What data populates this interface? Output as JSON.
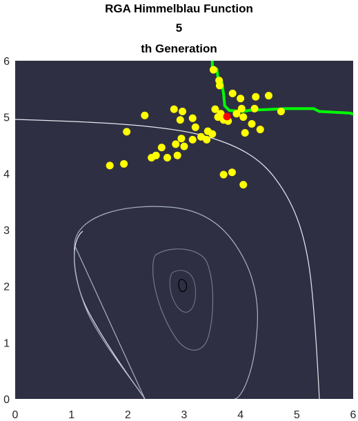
{
  "chart_data": {
    "type": "scatter",
    "title_lines": [
      "RGA Himmelblau Function",
      "5",
      "th Generation"
    ],
    "xlabel": "",
    "ylabel": "",
    "xlim": [
      0,
      6
    ],
    "ylim": [
      0,
      6
    ],
    "x_ticks": [
      "0",
      "1",
      "2",
      "3",
      "4",
      "5",
      "6"
    ],
    "y_ticks": [
      "0",
      "1",
      "2",
      "3",
      "4",
      "5",
      "6"
    ],
    "grid": false,
    "colors": {
      "background": "#2f2f44",
      "population": "#ffff00",
      "best": "#ff0000",
      "boundary": "#00ff00",
      "contour_outer": "#e8eaf0",
      "contour_mid": "#a9b3c5",
      "contour_inner": "#74788f",
      "contour_center": "#000000"
    },
    "population": [
      [
        3.52,
        5.84
      ],
      [
        3.62,
        5.65
      ],
      [
        3.63,
        5.56
      ],
      [
        3.86,
        5.42
      ],
      [
        4.0,
        5.33
      ],
      [
        4.27,
        5.36
      ],
      [
        4.5,
        5.38
      ],
      [
        3.55,
        5.14
      ],
      [
        3.65,
        5.06
      ],
      [
        3.6,
        5.0
      ],
      [
        3.7,
        4.95
      ],
      [
        3.78,
        4.93
      ],
      [
        3.93,
        5.06
      ],
      [
        4.02,
        5.15
      ],
      [
        4.05,
        5.0
      ],
      [
        4.25,
        5.15
      ],
      [
        4.72,
        5.1
      ],
      [
        4.2,
        4.88
      ],
      [
        4.35,
        4.78
      ],
      [
        4.08,
        4.72
      ],
      [
        2.82,
        5.14
      ],
      [
        2.97,
        5.1
      ],
      [
        3.15,
        4.98
      ],
      [
        3.2,
        4.82
      ],
      [
        2.93,
        4.95
      ],
      [
        2.3,
        5.03
      ],
      [
        1.98,
        4.74
      ],
      [
        3.42,
        4.75
      ],
      [
        3.5,
        4.7
      ],
      [
        3.3,
        4.65
      ],
      [
        3.4,
        4.6
      ],
      [
        3.15,
        4.6
      ],
      [
        2.95,
        4.62
      ],
      [
        2.85,
        4.52
      ],
      [
        3.0,
        4.48
      ],
      [
        2.6,
        4.46
      ],
      [
        2.5,
        4.32
      ],
      [
        2.42,
        4.28
      ],
      [
        2.7,
        4.28
      ],
      [
        2.88,
        4.32
      ],
      [
        1.93,
        4.17
      ],
      [
        1.68,
        4.14
      ],
      [
        3.85,
        4.02
      ],
      [
        3.7,
        3.98
      ],
      [
        4.05,
        3.8
      ]
    ],
    "best": [
      3.76,
      5.01
    ],
    "boundary": [
      [
        3.5,
        6.0
      ],
      [
        3.5,
        5.9
      ],
      [
        3.58,
        5.85
      ],
      [
        3.6,
        5.7
      ],
      [
        3.67,
        5.62
      ],
      [
        3.7,
        5.4
      ],
      [
        3.72,
        5.2
      ],
      [
        3.8,
        5.12
      ],
      [
        4.05,
        5.1
      ],
      [
        4.15,
        5.12
      ],
      [
        4.8,
        5.15
      ],
      [
        5.3,
        5.15
      ],
      [
        5.4,
        5.1
      ],
      [
        5.95,
        5.07
      ],
      [
        6.0,
        5.05
      ]
    ]
  }
}
